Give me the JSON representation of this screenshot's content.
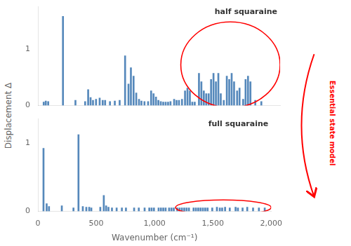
{
  "chart_data": [
    {
      "type": "bar",
      "x": [
        48,
        65,
        85,
        207,
        310,
        390,
        415,
        435,
        455,
        480,
        510,
        535,
        555,
        595,
        635,
        675,
        720,
        748,
        768,
        790,
        812,
        835,
        855,
        880,
        910,
        935,
        955,
        975,
        995,
        1015,
        1035,
        1055,
        1075,
        1095,
        1125,
        1145,
        1165,
        1190,
        1215,
        1235,
        1255,
        1275,
        1295,
        1330,
        1350,
        1370,
        1390,
        1410,
        1430,
        1450,
        1470,
        1490,
        1510,
        1535,
        1560,
        1580,
        1600,
        1620,
        1645,
        1665,
        1695,
        1715,
        1735,
        1755,
        1795,
        1845
      ],
      "values": [
        0.06,
        0.08,
        0.07,
        1.58,
        0.09,
        0.07,
        0.28,
        0.14,
        0.09,
        0.11,
        0.13,
        0.09,
        0.09,
        0.07,
        0.08,
        0.09,
        0.88,
        0.38,
        0.67,
        0.52,
        0.22,
        0.11,
        0.08,
        0.07,
        0.07,
        0.26,
        0.21,
        0.15,
        0.09,
        0.07,
        0.06,
        0.06,
        0.06,
        0.07,
        0.11,
        0.09,
        0.09,
        0.11,
        0.26,
        0.31,
        0.26,
        0.06,
        0.06,
        0.57,
        0.42,
        0.26,
        0.21,
        0.21,
        0.46,
        0.57,
        0.42,
        0.57,
        0.21,
        0.09,
        0.52,
        0.46,
        0.57,
        0.42,
        0.26,
        0.31,
        0.11,
        0.46,
        0.52,
        0.42,
        0.09,
        0.07
      ],
      "color": "#5588bb",
      "ylabel": "Displacement Δ",
      "xlim": [
        0,
        2000
      ],
      "xticks": [
        0,
        500,
        1000,
        1500,
        2000
      ],
      "ylim": [
        0,
        1.75
      ],
      "yticks": [
        0,
        1
      ],
      "tick_labels": "y",
      "grid": false,
      "annotations": [
        "half squaraine"
      ],
      "ellipse": {
        "x": 1590,
        "y": 0.72,
        "width": 820,
        "height": 1.52,
        "color": "red"
      }
    },
    {
      "type": "bar",
      "x": [
        48,
        75,
        95,
        205,
        305,
        348,
        385,
        415,
        440,
        458,
        535,
        565,
        585,
        605,
        635,
        675,
        720,
        755,
        825,
        865,
        915,
        955,
        975,
        995,
        1035,
        1055,
        1075,
        1095,
        1125,
        1145,
        1165,
        1195,
        1215,
        1235,
        1255,
        1275,
        1295,
        1335,
        1355,
        1375,
        1395,
        1415,
        1435,
        1455,
        1495,
        1535,
        1560,
        1580,
        1605,
        1645,
        1695,
        1715,
        1755,
        1795,
        1845,
        1895,
        1945
      ],
      "values": [
        0.92,
        0.11,
        0.07,
        0.08,
        0.05,
        1.12,
        0.07,
        0.06,
        0.06,
        0.05,
        0.06,
        0.23,
        0.08,
        0.06,
        0.05,
        0.05,
        0.05,
        0.05,
        0.05,
        0.05,
        0.05,
        0.05,
        0.05,
        0.05,
        0.05,
        0.05,
        0.05,
        0.05,
        0.05,
        0.05,
        0.05,
        0.05,
        0.05,
        0.05,
        0.05,
        0.05,
        0.05,
        0.05,
        0.05,
        0.05,
        0.05,
        0.05,
        0.05,
        0.05,
        0.05,
        0.06,
        0.05,
        0.05,
        0.06,
        0.05,
        0.06,
        0.05,
        0.05,
        0.06,
        0.05,
        0.05,
        0.05
      ],
      "color": "#5588bb",
      "xlabel": "Wavenumber (cm⁻¹)",
      "xlim": [
        0,
        2000
      ],
      "xticks": [
        0,
        500,
        1000,
        1500,
        2000
      ],
      "ylim": [
        0,
        1.35
      ],
      "yticks": [
        0,
        1
      ],
      "grid": false,
      "annotations": [
        "full squaraine",
        "Essential state model"
      ],
      "ellipse": {
        "x": 1590,
        "y": 0.055,
        "width": 820,
        "height": 0.22,
        "color": "red"
      }
    }
  ]
}
